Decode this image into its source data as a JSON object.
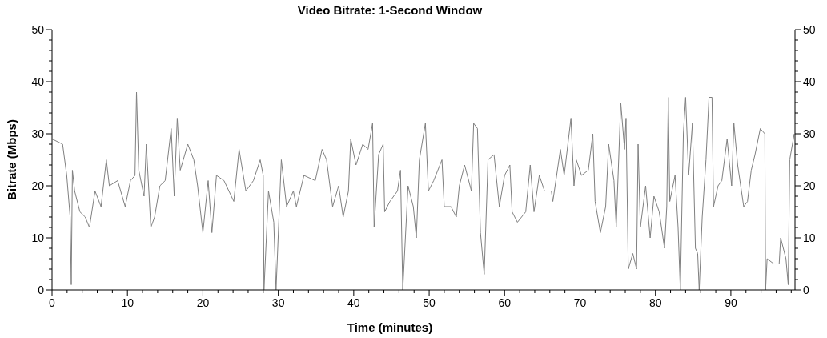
{
  "chart_data": {
    "type": "line",
    "title": "Video Bitrate: 1-Second Window",
    "xlabel": "Time (minutes)",
    "ylabel": "Bitrate (Mbps)",
    "xlim": [
      0,
      98.5
    ],
    "xticks": [
      0,
      {
        "value": 2,
        "label": null
      },
      {
        "value": 4,
        "label": null
      },
      {
        "value": 6,
        "label": null
      },
      {
        "value": 8,
        "label": null
      },
      10,
      {
        "value": 12,
        "label": null
      },
      {
        "value": 14,
        "label": null
      },
      {
        "value": 16,
        "label": null
      },
      {
        "value": 18,
        "label": null
      },
      20,
      {
        "value": 22,
        "label": null
      },
      {
        "value": 24,
        "label": null
      },
      {
        "value": 26,
        "label": null
      },
      {
        "value": 28,
        "label": null
      },
      30,
      {
        "value": 32,
        "label": null
      },
      {
        "value": 34,
        "label": null
      },
      {
        "value": 36,
        "label": null
      },
      {
        "value": 38,
        "label": null
      },
      40,
      {
        "value": 42,
        "label": null
      },
      {
        "value": 44,
        "label": null
      },
      {
        "value": 46,
        "label": null
      },
      {
        "value": 48,
        "label": null
      },
      50,
      {
        "value": 52,
        "label": null
      },
      {
        "value": 54,
        "label": null
      },
      {
        "value": 56,
        "label": null
      },
      {
        "value": 58,
        "label": null
      },
      60,
      {
        "value": 62,
        "label": null
      },
      {
        "value": 64,
        "label": null
      },
      {
        "value": 66,
        "label": null
      },
      {
        "value": 68,
        "label": null
      },
      70,
      {
        "value": 72,
        "label": null
      },
      {
        "value": 74,
        "label": null
      },
      {
        "value": 76,
        "label": null
      },
      {
        "value": 78,
        "label": null
      },
      80,
      {
        "value": 82,
        "label": null
      },
      {
        "value": 84,
        "label": null
      },
      {
        "value": 86,
        "label": null
      },
      {
        "value": 88,
        "label": null
      },
      90,
      {
        "value": 92,
        "label": null
      },
      {
        "value": 94,
        "label": null
      },
      {
        "value": 96,
        "label": null
      },
      {
        "value": 98,
        "label": null
      }
    ],
    "ylim": [
      0,
      50
    ],
    "yticks": [
      0,
      {
        "value": 2,
        "label": null
      },
      {
        "value": 4,
        "label": null
      },
      {
        "value": 6,
        "label": null
      },
      {
        "value": 8,
        "label": null
      },
      10,
      {
        "value": 12,
        "label": null
      },
      {
        "value": 14,
        "label": null
      },
      {
        "value": 16,
        "label": null
      },
      {
        "value": 18,
        "label": null
      },
      20,
      {
        "value": 22,
        "label": null
      },
      {
        "value": 24,
        "label": null
      },
      {
        "value": 26,
        "label": null
      },
      {
        "value": 28,
        "label": null
      },
      30,
      {
        "value": 32,
        "label": null
      },
      {
        "value": 34,
        "label": null
      },
      {
        "value": 36,
        "label": null
      },
      {
        "value": 38,
        "label": null
      },
      40,
      {
        "value": 42,
        "label": null
      },
      {
        "value": 44,
        "label": null
      },
      {
        "value": 46,
        "label": null
      },
      {
        "value": 48,
        "label": null
      },
      50
    ],
    "y2lim": [
      0,
      50
    ],
    "y2ticks": [
      0,
      {
        "value": 2,
        "label": null
      },
      {
        "value": 4,
        "label": null
      },
      {
        "value": 6,
        "label": null
      },
      {
        "value": 8,
        "label": null
      },
      10,
      {
        "value": 12,
        "label": null
      },
      {
        "value": 14,
        "label": null
      },
      {
        "value": 16,
        "label": null
      },
      {
        "value": 18,
        "label": null
      },
      20,
      {
        "value": 22,
        "label": null
      },
      {
        "value": 24,
        "label": null
      },
      {
        "value": 26,
        "label": null
      },
      {
        "value": 28,
        "label": null
      },
      30,
      {
        "value": 32,
        "label": null
      },
      {
        "value": 34,
        "label": null
      },
      {
        "value": 36,
        "label": null
      },
      {
        "value": 38,
        "label": null
      },
      40,
      {
        "value": 42,
        "label": null
      },
      {
        "value": 44,
        "label": null
      },
      {
        "value": 46,
        "label": null
      },
      {
        "value": 48,
        "label": null
      },
      50
    ],
    "grid": false,
    "marker": "none",
    "line_style": "solid",
    "series": [
      {
        "color": "#808080",
        "x": [
          0,
          1.4,
          1.95,
          2.4,
          2.55,
          2.7,
          3.0,
          3.7,
          4.4,
          4.96,
          5.7,
          6.5,
          7.2,
          7.6,
          8.7,
          9.7,
          10.4,
          11.0,
          11.2,
          11.5,
          12.2,
          12.5,
          13.1,
          13.6,
          14.3,
          15.0,
          15.8,
          16.2,
          16.6,
          17.0,
          18.0,
          18.8,
          19.3,
          20.0,
          20.7,
          21.2,
          21.8,
          22.8,
          24.1,
          24.8,
          25.7,
          26.7,
          27.6,
          28.0,
          28.1,
          28.7,
          29.4,
          29.7,
          30.4,
          31.1,
          32.0,
          32.4,
          33.4,
          34.9,
          35.8,
          36.4,
          37.2,
          38.0,
          38.6,
          39.3,
          39.6,
          40.3,
          41.2,
          41.9,
          42.5,
          42.7,
          43.3,
          43.9,
          44.1,
          44.8,
          45.8,
          46.2,
          46.5,
          47.2,
          47.9,
          48.3,
          48.7,
          49.5,
          49.9,
          50.6,
          51.7,
          52.0,
          52.9,
          53.6,
          54.0,
          54.7,
          55.6,
          55.9,
          56.4,
          56.8,
          57.3,
          57.8,
          58.6,
          59.3,
          60.0,
          60.7,
          61.0,
          61.7,
          62.8,
          63.4,
          63.9,
          64.6,
          65.3,
          66.2,
          66.4,
          67.4,
          67.9,
          68.8,
          69.2,
          69.5,
          70.2,
          71.1,
          71.7,
          72.0,
          72.7,
          73.4,
          73.8,
          74.5,
          74.8,
          75.4,
          75.9,
          76.1,
          76.4,
          77.0,
          77.5,
          77.7,
          78.0,
          78.7,
          79.3,
          79.8,
          80.5,
          81.2,
          81.5,
          81.7,
          81.9,
          82.6,
          83.0,
          83.3,
          83.7,
          84.0,
          84.4,
          84.9,
          85.3,
          85.6,
          85.8,
          86.2,
          86.7,
          87.1,
          87.5,
          87.7,
          88.3,
          88.8,
          89.5,
          90.1,
          90.4,
          90.9,
          91.7,
          92.2,
          92.7,
          93.2,
          93.9,
          94.5,
          94.6,
          94.8,
          95.7,
          96.4,
          96.6,
          97.3,
          97.6,
          97.8,
          98.4
        ],
        "values": [
          29,
          28,
          22,
          14,
          1,
          23,
          19,
          15,
          14,
          12,
          19,
          16,
          25,
          20,
          21,
          16,
          21,
          22,
          38,
          23,
          18,
          28,
          12,
          14,
          20,
          21,
          31,
          18,
          33,
          23,
          28,
          25,
          20,
          11,
          21,
          11,
          22,
          21,
          17,
          27,
          19,
          21,
          25,
          22,
          0,
          19,
          13,
          0,
          25,
          16,
          19,
          16,
          22,
          21,
          27,
          25,
          16,
          20,
          14,
          19,
          29,
          24,
          28,
          27,
          32,
          12,
          26,
          28,
          15,
          17,
          19,
          23,
          0,
          20,
          16,
          10,
          25,
          32,
          19,
          21,
          25,
          16,
          16,
          14,
          20,
          24,
          19,
          32,
          31,
          11,
          3,
          25,
          26,
          16,
          22,
          24,
          15,
          13,
          15,
          24,
          15,
          22,
          19,
          19,
          17,
          27,
          22,
          33,
          20,
          25,
          22,
          23,
          30,
          17,
          11,
          16,
          28,
          21,
          12,
          36,
          27,
          33,
          4,
          7,
          4,
          28,
          12,
          20,
          10,
          18,
          15,
          8,
          16,
          37,
          17,
          22,
          12,
          0,
          30,
          37,
          22,
          32,
          8,
          7,
          0,
          14,
          25,
          37,
          37,
          16,
          20,
          21,
          29,
          20,
          32,
          24,
          16,
          17,
          23,
          26,
          31,
          30,
          0,
          6,
          5,
          5,
          10,
          6,
          1,
          25,
          30
        ]
      }
    ]
  }
}
